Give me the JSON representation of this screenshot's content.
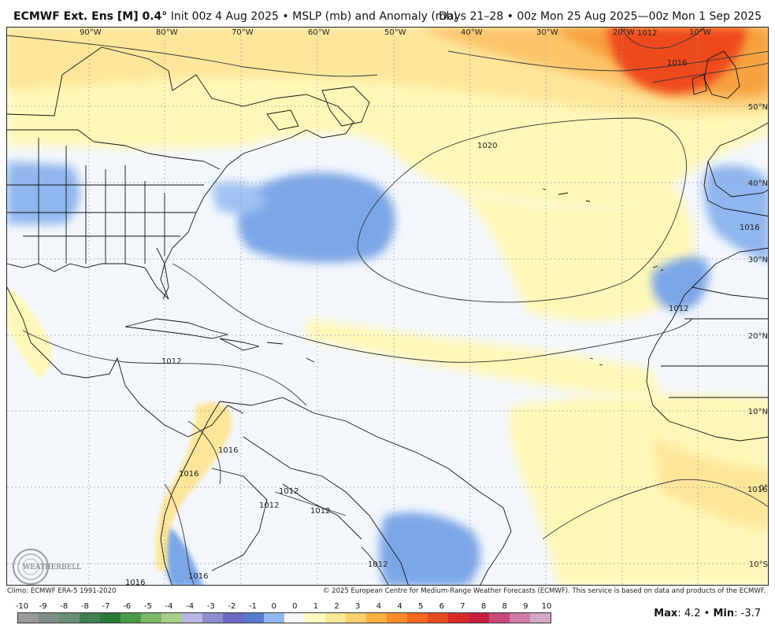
{
  "header": {
    "model": "ECMWF Ext. Ens [M] 0.4",
    "degree": "°",
    "init": "Init 00z 4 Aug 2025",
    "sep": "•",
    "field": "MSLP (mb) and Anomaly (mb)",
    "valid": "Days 21–28 • 00z Mon 25 Aug 2025—00z Mon 1 Sep 2025"
  },
  "map": {
    "longitude_labels": [
      "90°W",
      "80°W",
      "70°W",
      "60°W",
      "50°W",
      "40°W",
      "30°W",
      "20°W",
      "10°W"
    ],
    "latitude_labels": [
      "50°N",
      "40°N",
      "30°N",
      "20°N",
      "10°N",
      "0°",
      "10°S"
    ],
    "isobar_labels": [
      "1012",
      "1016",
      "1020",
      "1012",
      "1016",
      "1016",
      "1016",
      "1012",
      "1012",
      "1012",
      "1016",
      "1012",
      "1016",
      "1012",
      "1016"
    ],
    "logo_text": "WEATHERBELL"
  },
  "credits": {
    "climo": "Climo: ECMWF ERA-5 1991-2020",
    "copyright": "© 2025 European Centre for Medium-Range Weather Forecasts (ECMWF). This service is based on data and products of the ECMWF."
  },
  "colorbar": {
    "labels": [
      "-10",
      "-9",
      "-8",
      "-8",
      "-7",
      "-6",
      "-5",
      "-4",
      "-4",
      "-3",
      "-2",
      "-1",
      "0",
      "0",
      "1",
      "2",
      "3",
      "4",
      "4",
      "5",
      "6",
      "7",
      "8",
      "8",
      "9",
      "10"
    ],
    "colors": [
      "#9a9a9a",
      "#7f8e86",
      "#6a8f76",
      "#3f7f52",
      "#2a7a3e",
      "#4a9a4a",
      "#7ab86a",
      "#a8cf8a",
      "#b8b8e0",
      "#8f8fd0",
      "#6a6ac4",
      "#5a7ad0",
      "#8fb8f0",
      "#f7f7f7",
      "#fff8c0",
      "#fde89a",
      "#fdd06a",
      "#fcb040",
      "#fb8c2a",
      "#f56a20",
      "#e84820",
      "#d82a2a",
      "#c81e40",
      "#c84a7a",
      "#d07aa8",
      "#d4a8c8"
    ]
  },
  "stats": {
    "max_label": "Max",
    "max": "4.2",
    "sep": "•",
    "min_label": "Min",
    "min": "-3.7"
  },
  "colors": {
    "background": "#f3f7fc",
    "pos_light": "#fff7b8",
    "pos_mid": "#fde69a",
    "pos_high": "#f7a240",
    "pos_max": "#ee4a1c",
    "neg": "#7aa6e8"
  }
}
